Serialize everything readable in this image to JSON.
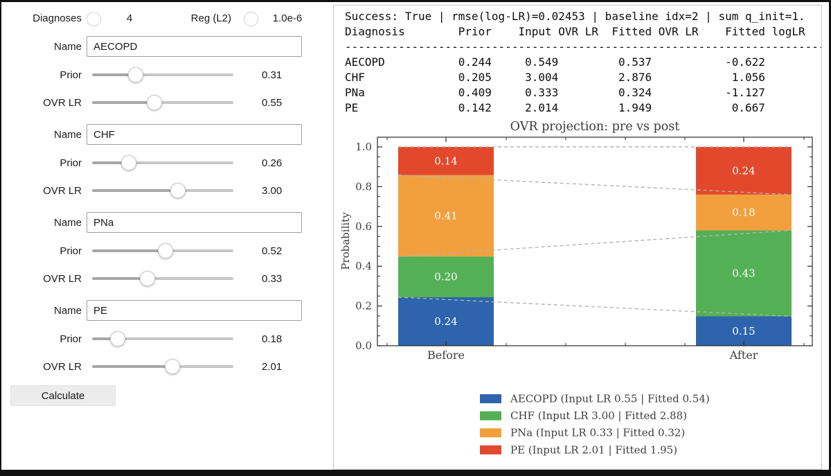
{
  "controls": {
    "diagnoses_label": "Diagnoses",
    "diagnoses_value": "4",
    "reg_label": "Reg (L2)",
    "reg_value": "1.0e-6",
    "field_labels": {
      "name": "Name",
      "prior": "Prior",
      "ovr": "OVR LR"
    },
    "calculate_label": "Calculate",
    "diagnoses": [
      {
        "name": "AECOPD",
        "prior": "0.31",
        "prior_pos": 0.31,
        "ovr_lr": "0.55",
        "ovr_pos": 0.44
      },
      {
        "name": "CHF",
        "prior": "0.26",
        "prior_pos": 0.26,
        "ovr_lr": "3.00",
        "ovr_pos": 0.61
      },
      {
        "name": "PNa",
        "prior": "0.52",
        "prior_pos": 0.52,
        "ovr_lr": "0.33",
        "ovr_pos": 0.39
      },
      {
        "name": "PE",
        "prior": "0.18",
        "prior_pos": 0.18,
        "ovr_lr": "2.01",
        "ovr_pos": 0.57
      }
    ]
  },
  "output": {
    "success_line": "Success: True | rmse(log-LR)=0.02453 | baseline idx=2 | sum q_init=1.",
    "header": [
      "Diagnosis",
      "Prior",
      "Input OVR LR",
      "Fitted OVR LR",
      "Fitted logLR"
    ],
    "rows": [
      [
        "AECOPD",
        "0.244",
        "0.549",
        "0.537",
        "-0.622"
      ],
      [
        "CHF",
        "0.205",
        "3.004",
        "2.876",
        "1.056"
      ],
      [
        "PNa",
        "0.409",
        "0.333",
        "0.324",
        "-1.127"
      ],
      [
        "PE",
        "0.142",
        "2.014",
        "1.949",
        "0.667"
      ]
    ]
  },
  "chart_data": {
    "type": "bar",
    "subtype": "stacked-bar-before-after",
    "title": "OVR projection: pre vs post",
    "ylabel": "Probability",
    "categories": [
      "Before",
      "After"
    ],
    "ylim": [
      0,
      1.05
    ],
    "yticks": [
      "0.0",
      "0.2",
      "0.4",
      "0.6",
      "0.8",
      "1.0"
    ],
    "grid": false,
    "legend_position": "below",
    "series": [
      {
        "name": "AECOPD",
        "color": "#2d64ad",
        "values": [
          0.244,
          0.148
        ],
        "labels": [
          "0.24",
          "0.15"
        ]
      },
      {
        "name": "CHF",
        "color": "#54b054",
        "values": [
          0.205,
          0.432
        ],
        "labels": [
          "0.20",
          "0.43"
        ]
      },
      {
        "name": "PNa",
        "color": "#f1a03d",
        "values": [
          0.409,
          0.18
        ],
        "labels": [
          "0.41",
          "0.18"
        ]
      },
      {
        "name": "PE",
        "color": "#e2482c",
        "values": [
          0.142,
          0.24
        ],
        "labels": [
          "0.14",
          "0.24"
        ]
      }
    ],
    "connector_style": {
      "color": "#b3b3b3",
      "dashed": true
    },
    "legend": [
      {
        "label": "AECOPD  (Input LR 0.55 | Fitted 0.54)",
        "color": "#2d64ad"
      },
      {
        "label": "CHF  (Input LR 3.00 | Fitted 2.88)",
        "color": "#54b054"
      },
      {
        "label": "PNa  (Input LR 0.33 | Fitted 0.32)",
        "color": "#f1a03d"
      },
      {
        "label": "PE  (Input LR 2.01 | Fitted 1.95)",
        "color": "#e2482c"
      }
    ]
  }
}
